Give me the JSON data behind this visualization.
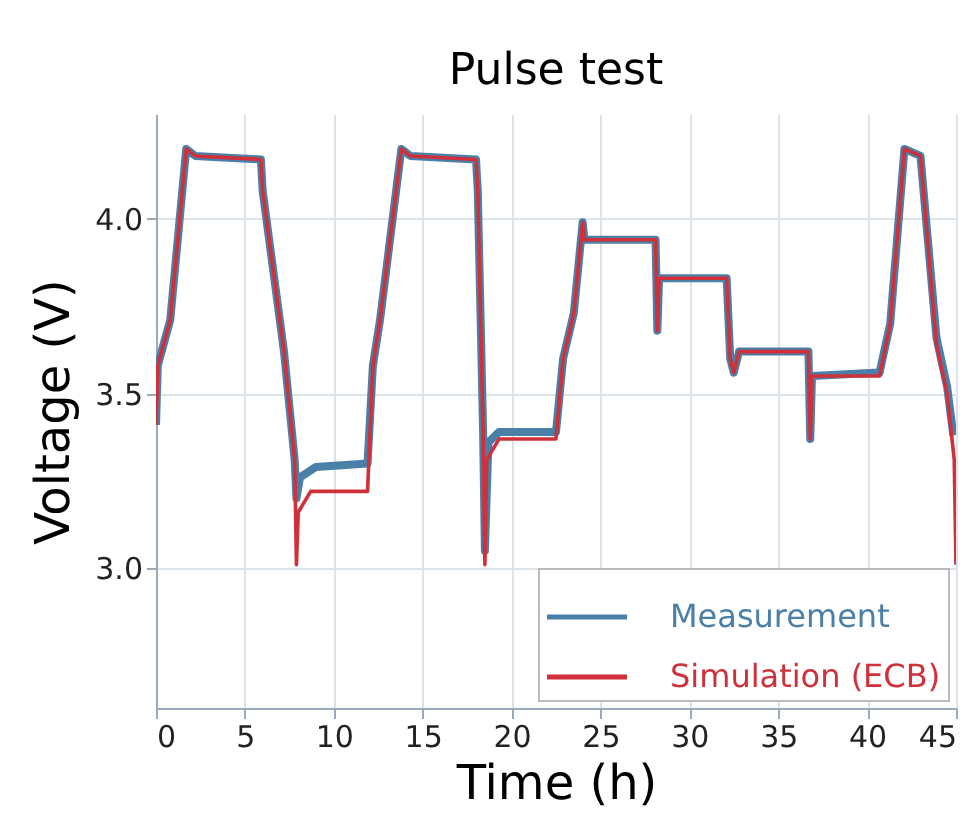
{
  "chart_data": {
    "type": "line",
    "title": "Pulse test",
    "xlabel": "Time (h)",
    "ylabel": "Voltage (V)",
    "xlim": [
      0,
      45
    ],
    "xticks": [
      0,
      5,
      10,
      15,
      20,
      25,
      30,
      35,
      40,
      45
    ],
    "ylim": [
      2.6,
      4.3
    ],
    "yticks": [
      {
        "value": 3,
        "label": "3.0"
      },
      3.5,
      {
        "value": 4,
        "label": "4.0"
      }
    ],
    "grid": true,
    "legend": "bottom right",
    "line_style": "solid",
    "series": [
      {
        "name": "Measurement",
        "color": "#4a7fa8",
        "x": [
          0,
          0.1,
          0.8,
          1.7,
          2.2,
          5.9,
          6.0,
          7.2,
          7.8,
          7.9,
          8.1,
          9.0,
          11.9,
          12.2,
          12.6,
          13.8,
          14.3,
          18.0,
          18.1,
          18.4,
          18.5,
          18.7,
          19.3,
          22.5,
          22.9,
          23.5,
          24.0,
          24.1,
          28.1,
          28.2,
          28.3,
          32.1,
          32.3,
          32.5,
          32.8,
          36.7,
          36.8,
          36.9,
          40.7,
          41.3,
          42.1,
          43.0,
          43.9,
          44.5,
          44.85
        ],
        "values": [
          3.41,
          3.58,
          3.71,
          4.2,
          4.18,
          4.17,
          4.08,
          3.62,
          3.31,
          3.2,
          3.26,
          3.29,
          3.3,
          3.58,
          3.71,
          4.2,
          4.18,
          4.17,
          4.08,
          3.39,
          3.05,
          3.36,
          3.39,
          3.39,
          3.6,
          3.73,
          3.99,
          3.94,
          3.94,
          3.68,
          3.83,
          3.83,
          3.6,
          3.56,
          3.62,
          3.62,
          3.37,
          3.55,
          3.56,
          3.7,
          4.2,
          4.18,
          3.66,
          3.52,
          3.38
        ]
      },
      {
        "name": "Simulation (ECB)",
        "color": "#d0303a",
        "x": [
          0,
          0.1,
          0.8,
          1.7,
          2.2,
          5.9,
          6.0,
          7.2,
          7.8,
          7.9,
          8.0,
          8.7,
          11.9,
          12.2,
          12.6,
          13.8,
          14.3,
          18.0,
          18.1,
          18.4,
          18.5,
          18.6,
          19.3,
          22.5,
          22.9,
          23.5,
          24.0,
          24.1,
          28.1,
          28.2,
          28.3,
          32.1,
          32.3,
          32.5,
          32.8,
          36.7,
          36.8,
          36.9,
          40.7,
          41.3,
          42.1,
          43.0,
          43.9,
          44.5,
          44.9,
          45.0
        ],
        "values": [
          3.41,
          3.58,
          3.71,
          4.2,
          4.18,
          4.17,
          4.08,
          3.62,
          3.31,
          3.01,
          3.16,
          3.22,
          3.22,
          3.58,
          3.71,
          4.2,
          4.18,
          4.17,
          4.08,
          3.39,
          3.01,
          3.31,
          3.37,
          3.37,
          3.6,
          3.73,
          3.99,
          3.94,
          3.94,
          3.68,
          3.83,
          3.83,
          3.6,
          3.56,
          3.62,
          3.62,
          3.37,
          3.55,
          3.55,
          3.7,
          4.2,
          4.18,
          3.64,
          3.5,
          3.31,
          3.01
        ]
      }
    ]
  }
}
